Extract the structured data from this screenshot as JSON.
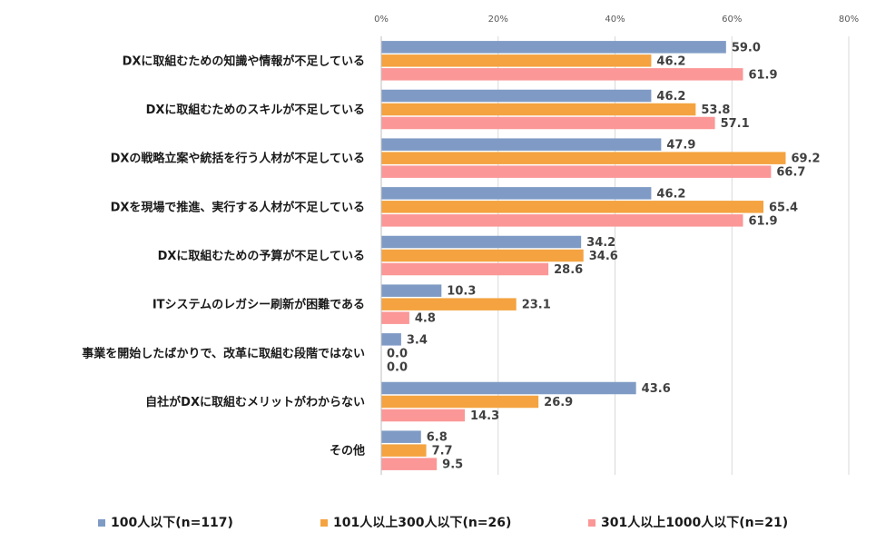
{
  "chart_data": {
    "type": "bar",
    "orientation": "horizontal",
    "categories": [
      "DXに取組むための知識や情報が不足している",
      "DXに取組むためのスキルが不足している",
      "DXの戦略立案や統括を行う人材が不足している",
      "DXを現場で推進、実行する人材が不足している",
      "DXに取組むための予算が不足している",
      "ITシステムのレガシー刷新が困難である",
      "事業を開始したばかりで、改革に取組む段階ではない",
      "自社がDXに取組むメリットがわからない",
      "その他"
    ],
    "series": [
      {
        "name": "100人以下(n=117)",
        "color": "#7f9bc5",
        "values": [
          59.0,
          46.2,
          47.9,
          46.2,
          34.2,
          10.3,
          3.4,
          43.6,
          6.8
        ],
        "labels": [
          "59.0",
          "46.2",
          "47.9",
          "46.2",
          "34.2",
          "10.3",
          "3.4",
          "43.6",
          "6.8"
        ]
      },
      {
        "name": "101人以上300人以下(n=26)",
        "color": "#f4a340",
        "values": [
          46.2,
          53.8,
          69.2,
          65.4,
          34.6,
          23.1,
          0.0,
          26.9,
          7.7
        ],
        "labels": [
          "46.2",
          "53.8",
          "69.2",
          "65.4",
          "34.6",
          "23.1",
          "0.0",
          "26.9",
          "7.7"
        ]
      },
      {
        "name": "301人以上1000人以下(n=21)",
        "color": "#fb9797",
        "values": [
          61.9,
          57.1,
          66.7,
          61.9,
          28.6,
          4.8,
          0.0,
          14.3,
          9.5
        ],
        "labels": [
          "61.9",
          "57.1",
          "66.7",
          "61.9",
          "28.6",
          "4.8",
          "0.0",
          "14.3",
          "9.5"
        ]
      }
    ],
    "xlim": [
      0,
      80
    ],
    "xticks": [
      0,
      20,
      40,
      60,
      80
    ],
    "xtick_labels": [
      "0%",
      "20%",
      "40%",
      "60%",
      "80%"
    ],
    "grid": true,
    "axis_position": "top",
    "legend": "bottom"
  }
}
